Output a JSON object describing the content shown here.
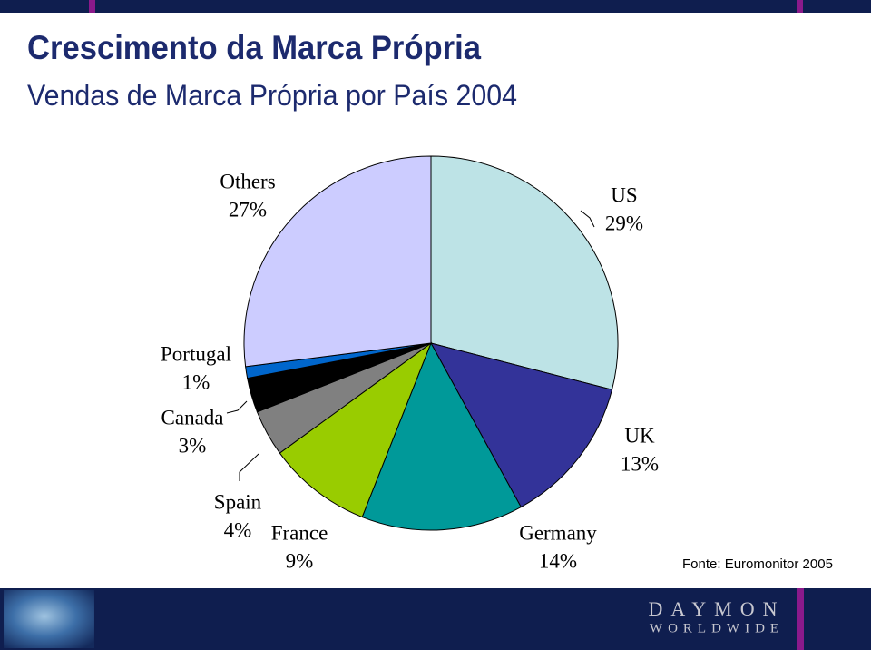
{
  "chart_data": {
    "type": "pie",
    "title": "Crescimento da Marca Própria",
    "subtitle": "Vendas de Marca Própria por País 2004",
    "categories": [
      "US",
      "UK",
      "Germany",
      "France",
      "Spain",
      "Canada",
      "Portugal",
      "Others"
    ],
    "values": [
      29,
      13,
      14,
      9,
      4,
      3,
      1,
      27
    ],
    "value_labels": [
      "29%",
      "13%",
      "14%",
      "9%",
      "4%",
      "3%",
      "1%",
      "27%"
    ],
    "colors": [
      "#bde3e6",
      "#333399",
      "#009999",
      "#99cc00",
      "#808080",
      "#000000",
      "#0066cc",
      "#ccccff"
    ],
    "source": "Fonte: Euromonitor 2005"
  },
  "branding": {
    "line1": "DAYMON",
    "line2": "WORLDWIDE"
  }
}
